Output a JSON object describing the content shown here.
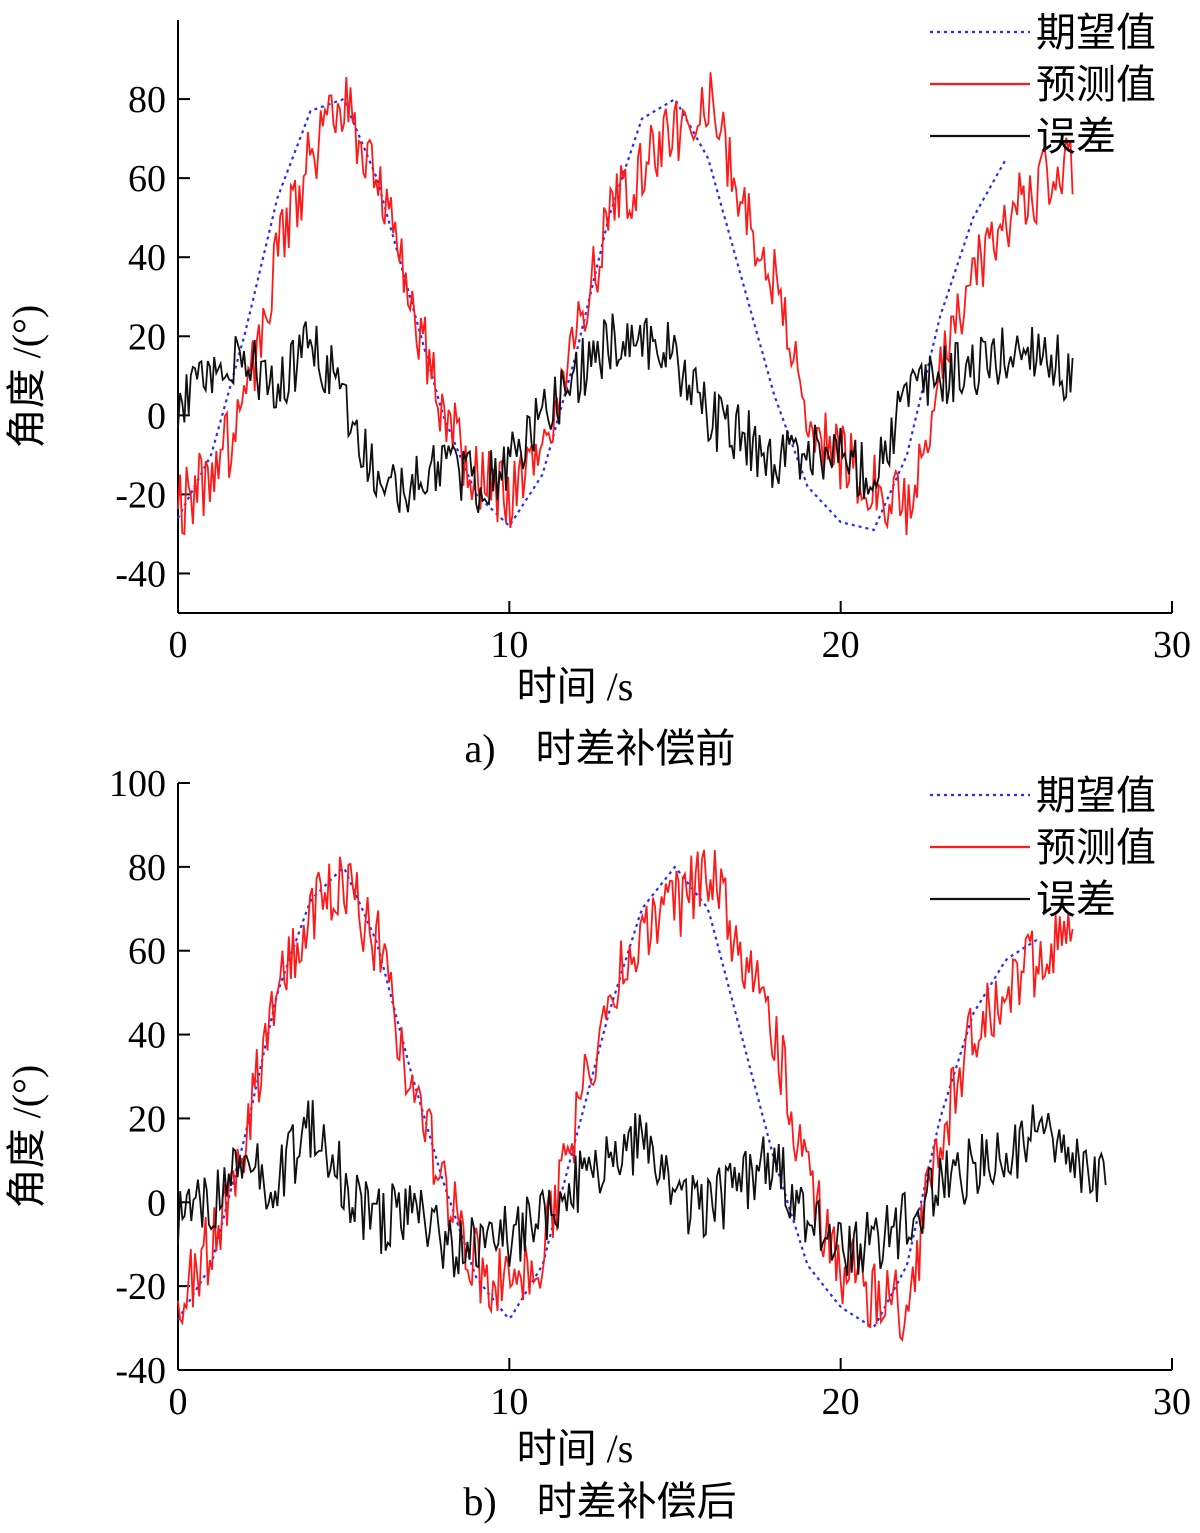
{
  "chart_data": [
    {
      "type": "line",
      "caption": "a)　时差补偿前",
      "xlabel": "时间 /s",
      "ylabel": "角度 /(°)",
      "xlim": [
        0,
        30
      ],
      "ylim": [
        -50,
        100
      ],
      "xticks": [
        0,
        10,
        20,
        30
      ],
      "yticks": [
        -40,
        -20,
        0,
        20,
        40,
        60,
        80
      ],
      "legend_position": "top-right",
      "series": [
        {
          "name": "期望值",
          "style": "dotted",
          "color": "#2a2aff",
          "x": [
            0,
            1,
            2,
            3,
            4,
            5,
            6,
            7,
            8,
            9,
            10,
            11,
            12,
            13,
            14,
            15,
            16,
            17,
            18,
            19,
            20,
            21,
            22,
            23,
            24,
            25
          ],
          "y": [
            -26,
            -10,
            20,
            55,
            77,
            80,
            60,
            30,
            0,
            -20,
            -28,
            -15,
            15,
            50,
            75,
            80,
            65,
            35,
            5,
            -18,
            -27,
            -29,
            -10,
            25,
            50,
            65
          ]
        },
        {
          "name": "预测值",
          "style": "solid",
          "color": "#ff1a1a",
          "x": [
            0,
            1,
            2,
            3,
            4,
            5,
            6,
            7,
            8,
            9,
            10,
            11,
            12,
            13,
            14,
            15,
            16,
            17,
            18,
            19,
            20,
            21,
            22,
            23,
            24,
            25,
            26,
            27
          ],
          "y": [
            -24,
            -15,
            0,
            40,
            65,
            80,
            60,
            30,
            0,
            -15,
            -20,
            -10,
            20,
            50,
            62,
            72,
            80,
            55,
            35,
            0,
            -10,
            -18,
            -25,
            10,
            35,
            50,
            58,
            62
          ]
        },
        {
          "name": "误差",
          "style": "solid",
          "color": "#111111",
          "x": [
            0,
            1,
            2,
            3,
            4,
            5,
            6,
            7,
            8,
            9,
            10,
            11,
            12,
            13,
            14,
            15,
            16,
            17,
            18,
            19,
            20,
            21,
            22,
            23,
            24,
            25,
            26,
            27
          ],
          "y": [
            2,
            10,
            15,
            5,
            20,
            5,
            -15,
            -20,
            -10,
            -18,
            -12,
            0,
            10,
            18,
            20,
            15,
            0,
            -5,
            -12,
            -8,
            -10,
            -15,
            5,
            10,
            12,
            15,
            18,
            8
          ]
        }
      ]
    },
    {
      "type": "line",
      "caption": "b)　时差补偿后",
      "xlabel": "时间 /s",
      "ylabel": "角度 /(°)",
      "xlim": [
        0,
        30
      ],
      "ylim": [
        -40,
        100
      ],
      "xticks": [
        0,
        10,
        20,
        30
      ],
      "yticks": [
        -40,
        -20,
        0,
        20,
        40,
        60,
        80,
        100
      ],
      "legend_position": "top-right",
      "series": [
        {
          "name": "期望值",
          "style": "dotted",
          "color": "#2a2aff",
          "x": [
            0,
            1,
            2,
            3,
            4,
            5,
            6,
            7,
            8,
            9,
            10,
            11,
            12,
            13,
            14,
            15,
            16,
            17,
            18,
            19,
            20,
            21,
            22,
            23,
            24,
            25,
            26
          ],
          "y": [
            -28,
            -15,
            15,
            50,
            72,
            80,
            62,
            32,
            5,
            -18,
            -28,
            -15,
            15,
            45,
            70,
            80,
            70,
            40,
            10,
            -15,
            -25,
            -30,
            -15,
            20,
            45,
            58,
            63
          ]
        },
        {
          "name": "预测值",
          "style": "solid",
          "color": "#ff1a1a",
          "x": [
            0,
            1,
            2,
            3,
            4,
            5,
            6,
            7,
            8,
            9,
            10,
            11,
            12,
            13,
            14,
            15,
            16,
            17,
            18,
            19,
            20,
            21,
            22,
            23,
            24,
            25,
            26,
            27
          ],
          "y": [
            -24,
            -10,
            15,
            55,
            68,
            78,
            62,
            30,
            5,
            -15,
            -22,
            -12,
            18,
            50,
            62,
            70,
            80,
            60,
            40,
            5,
            -15,
            -22,
            -25,
            15,
            40,
            52,
            58,
            62
          ]
        },
        {
          "name": "误差",
          "style": "solid",
          "color": "#111111",
          "x": [
            0,
            1,
            2,
            3,
            4,
            5,
            6,
            7,
            8,
            9,
            10,
            11,
            12,
            13,
            14,
            15,
            16,
            17,
            18,
            19,
            20,
            21,
            22,
            23,
            24,
            25,
            26,
            27,
            28
          ],
          "y": [
            -5,
            0,
            8,
            5,
            18,
            5,
            -5,
            0,
            -10,
            -10,
            -8,
            -5,
            5,
            10,
            15,
            0,
            -2,
            5,
            10,
            -5,
            -10,
            -10,
            -5,
            5,
            8,
            10,
            18,
            8,
            4
          ]
        }
      ]
    }
  ]
}
